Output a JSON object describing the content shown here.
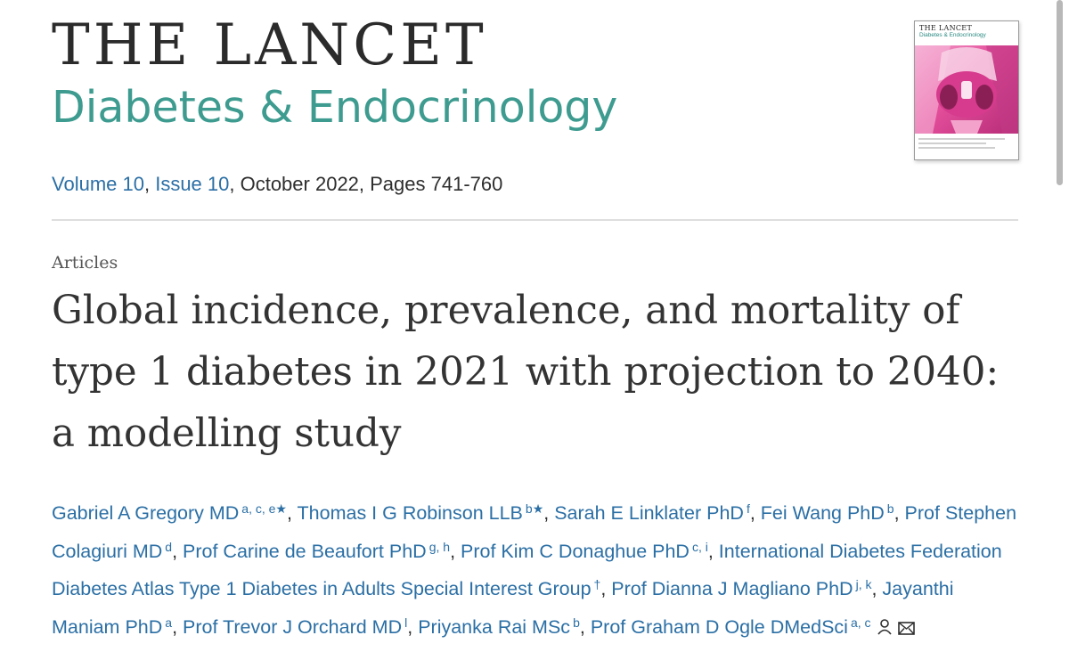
{
  "journal": {
    "title": "THE LANCET",
    "subtitle": "Diabetes & Endocrinology"
  },
  "cover": {
    "masthead": "THE LANCET",
    "subtitle": "Diabetes & Endocrinology",
    "colors": {
      "art": "#e44e9b",
      "subtitle": "#2a8a80"
    }
  },
  "issue": {
    "volume": "Volume 10",
    "issue": "Issue 10",
    "details": ", October 2022, Pages 741-760"
  },
  "article": {
    "type": "Articles",
    "title": "Global incidence, prevalence, and mortality of type 1 diabetes in 2021 with projection to 2040: a modelling study"
  },
  "authors": [
    {
      "name": "Gabriel A Gregory MD",
      "affil": "a, c, e★"
    },
    {
      "name": "Thomas I G Robinson LLB",
      "affil": "b★"
    },
    {
      "name": "Sarah E Linklater PhD",
      "affil": "f"
    },
    {
      "name": "Fei Wang PhD",
      "affil": "b"
    },
    {
      "name": "Prof Stephen Colagiuri MD",
      "affil": "d"
    },
    {
      "name": "Prof Carine de Beaufort PhD",
      "affil": "g, h"
    },
    {
      "name": "Prof Kim C Donaghue PhD",
      "affil": "c, i"
    },
    {
      "name": "International Diabetes Federation Diabetes Atlas Type 1 Diabetes in Adults Special Interest Group",
      "affil": "†"
    },
    {
      "name": "Prof Dianna J Magliano PhD",
      "affil": "j, k"
    },
    {
      "name": "Jayanthi Maniam PhD",
      "affil": "a"
    },
    {
      "name": "Prof Trevor J Orchard MD",
      "affil": "l"
    },
    {
      "name": "Priyanka Rai MSc",
      "affil": "b"
    },
    {
      "name": "Prof Graham D Ogle DMedSci",
      "affil": "a, c"
    }
  ],
  "icons": {
    "person": "person-icon",
    "email": "envelope-icon"
  },
  "colors": {
    "link": "#2b6fa5",
    "brand_teal": "#3d9b8f",
    "title_text": "#333333"
  }
}
